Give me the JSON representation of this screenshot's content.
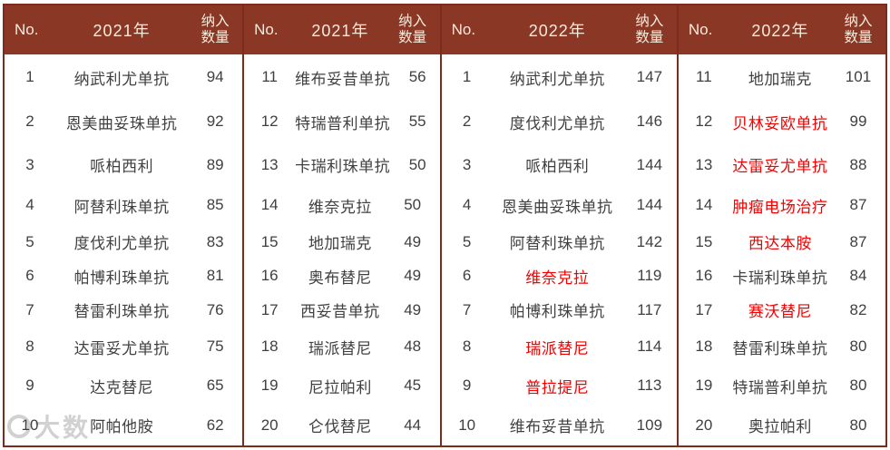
{
  "colors": {
    "header_bg": "#8B3726",
    "header_text": "#F4EBDA",
    "border": "#7D2B1C",
    "body_text": "#404040",
    "highlight": "#F40000"
  },
  "watermark": {
    "text": "大数"
  },
  "table": {
    "header": {
      "no": "No.",
      "count_line1": "纳入",
      "count_line2": "数量"
    },
    "groups": [
      {
        "year": "2021年",
        "rows": [
          {
            "no": "1",
            "name": "纳武利尤单抗",
            "count": "94",
            "red": false
          },
          {
            "no": "2",
            "name": "恩美曲妥珠单抗",
            "count": "92",
            "red": false
          },
          {
            "no": "3",
            "name": "哌柏西利",
            "count": "89",
            "red": false
          },
          {
            "no": "4",
            "name": "阿替利珠单抗",
            "count": "85",
            "red": false
          },
          {
            "no": "5",
            "name": "度伐利尤单抗",
            "count": "83",
            "red": false
          },
          {
            "no": "6",
            "name": "帕博利珠单抗",
            "count": "81",
            "red": false
          },
          {
            "no": "7",
            "name": "替雷利珠单抗",
            "count": "76",
            "red": false
          },
          {
            "no": "8",
            "name": "达雷妥尤单抗",
            "count": "75",
            "red": false
          },
          {
            "no": "9",
            "name": "达克替尼",
            "count": "65",
            "red": false
          },
          {
            "no": "10",
            "name": "阿帕他胺",
            "count": "62",
            "red": false
          }
        ]
      },
      {
        "year": "2021年",
        "rows": [
          {
            "no": "11",
            "name": "维布妥昔单抗",
            "count": "56",
            "red": false
          },
          {
            "no": "12",
            "name": "特瑞普利单抗",
            "count": "55",
            "red": false
          },
          {
            "no": "13",
            "name": "卡瑞利珠单抗",
            "count": "50",
            "red": false
          },
          {
            "no": "14",
            "name": "维奈克拉",
            "count": "50",
            "red": false
          },
          {
            "no": "15",
            "name": "地加瑞克",
            "count": "49",
            "red": false
          },
          {
            "no": "16",
            "name": "奥布替尼",
            "count": "49",
            "red": false
          },
          {
            "no": "17",
            "name": "西妥昔单抗",
            "count": "49",
            "red": false
          },
          {
            "no": "18",
            "name": "瑞派替尼",
            "count": "48",
            "red": false
          },
          {
            "no": "19",
            "name": "尼拉帕利",
            "count": "45",
            "red": false
          },
          {
            "no": "20",
            "name": "仑伐替尼",
            "count": "44",
            "red": false
          }
        ]
      },
      {
        "year": "2022年",
        "rows": [
          {
            "no": "1",
            "name": "纳武利尤单抗",
            "count": "147",
            "red": false
          },
          {
            "no": "2",
            "name": "度伐利尤单抗",
            "count": "146",
            "red": false
          },
          {
            "no": "3",
            "name": "哌柏西利",
            "count": "144",
            "red": false
          },
          {
            "no": "4",
            "name": "恩美曲妥珠单抗",
            "count": "144",
            "red": false
          },
          {
            "no": "5",
            "name": "阿替利珠单抗",
            "count": "142",
            "red": false
          },
          {
            "no": "6",
            "name": "维奈克拉",
            "count": "119",
            "red": true
          },
          {
            "no": "7",
            "name": "帕博利珠单抗",
            "count": "117",
            "red": false
          },
          {
            "no": "8",
            "name": "瑞派替尼",
            "count": "114",
            "red": true
          },
          {
            "no": "9",
            "name": "普拉提尼",
            "count": "113",
            "red": true
          },
          {
            "no": "10",
            "name": "维布妥昔单抗",
            "count": "109",
            "red": false
          }
        ]
      },
      {
        "year": "2022年",
        "rows": [
          {
            "no": "11",
            "name": "地加瑞克",
            "count": "101",
            "red": false
          },
          {
            "no": "12",
            "name": "贝林妥欧单抗",
            "count": "99",
            "red": true
          },
          {
            "no": "13",
            "name": "达雷妥尤单抗",
            "count": "88",
            "red": true
          },
          {
            "no": "14",
            "name": "肿瘤电场治疗",
            "count": "87",
            "red": true
          },
          {
            "no": "15",
            "name": "西达本胺",
            "count": "87",
            "red": true
          },
          {
            "no": "16",
            "name": "卡瑞利珠单抗",
            "count": "84",
            "red": false
          },
          {
            "no": "17",
            "name": "赛沃替尼",
            "count": "82",
            "red": true
          },
          {
            "no": "18",
            "name": "替雷利珠单抗",
            "count": "80",
            "red": false
          },
          {
            "no": "19",
            "name": "特瑞普利单抗",
            "count": "80",
            "red": false
          },
          {
            "no": "20",
            "name": "奥拉帕利",
            "count": "80",
            "red": false
          }
        ]
      }
    ]
  }
}
